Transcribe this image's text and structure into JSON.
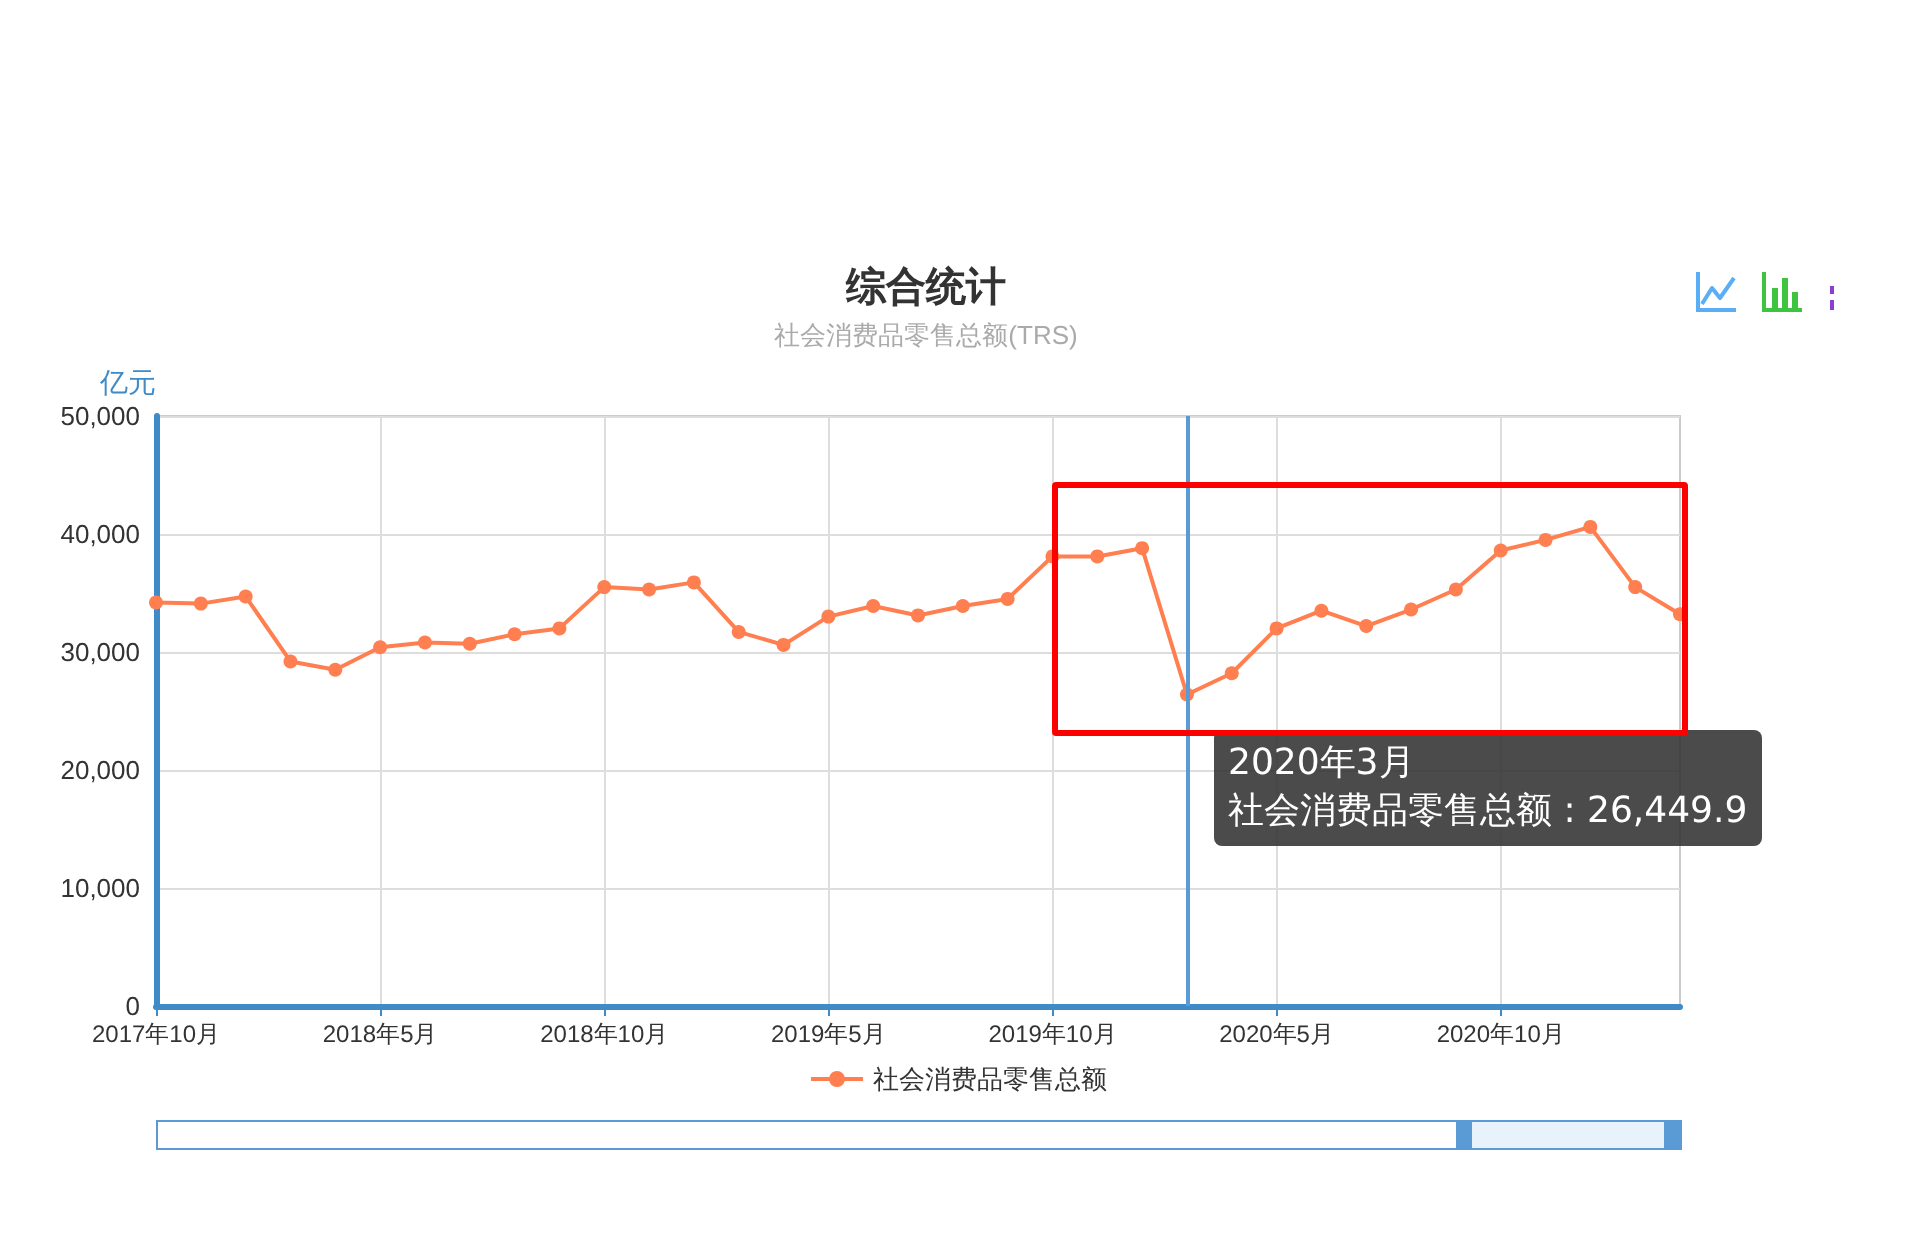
{
  "chart_data": {
    "type": "line",
    "title": "综合统计",
    "subtitle": "社会消费品零售总额(TRS)",
    "ylabel": "亿元",
    "categories": [
      "2017年10月",
      null,
      null,
      null,
      null,
      "2018年5月",
      null,
      null,
      null,
      null,
      "2018年10月",
      null,
      null,
      null,
      null,
      "2019年5月",
      null,
      null,
      null,
      null,
      "2019年10月",
      null,
      null,
      null,
      null,
      "2020年5月",
      null,
      null,
      null,
      null,
      "2020年10月",
      null,
      null,
      null,
      null
    ],
    "series": [
      {
        "name": "社会消费品零售总额",
        "color": "#ff7f50",
        "values": [
          34200,
          34100,
          34700,
          29200,
          28500,
          30400,
          30800,
          30700,
          31500,
          32000,
          35500,
          35300,
          35900,
          31700,
          30600,
          33000,
          33900,
          33100,
          33900,
          34500,
          38100,
          38100,
          38800,
          26400,
          28200,
          32000,
          33500,
          32200,
          33600,
          35300,
          38600,
          39500,
          40600,
          35500,
          33200
        ]
      }
    ],
    "ylim": [
      0,
      50000
    ],
    "yticks": [
      {
        "value": 0,
        "label": "0"
      },
      {
        "value": 10000,
        "label": "10,000"
      },
      {
        "value": 20000,
        "label": "20,000"
      },
      {
        "value": 30000,
        "label": "30,000"
      },
      {
        "value": 40000,
        "label": "40,000"
      },
      {
        "value": 50000,
        "label": "50,000"
      }
    ],
    "annotations": [
      "2020年3月",
      "社会消费品零售总额 : 26,449.9"
    ],
    "grid": true,
    "legend": "bottom",
    "marker": "circle",
    "line_style": "solid"
  }
}
